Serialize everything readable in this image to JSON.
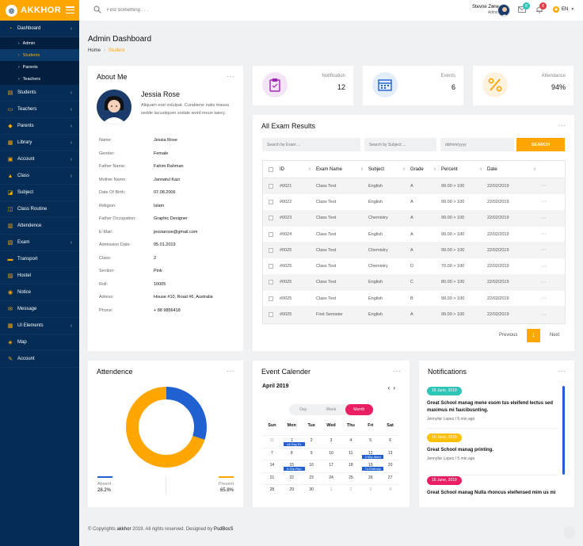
{
  "brand": {
    "name": "AKKHOR"
  },
  "sidebar": {
    "items": [
      {
        "label": "Dashboard",
        "icon": "dashboard-icon",
        "glyph": "◔",
        "chevron": true
      },
      {
        "label": "Students",
        "icon": "students-icon",
        "glyph": "▤",
        "chevron": true
      },
      {
        "label": "Teachers",
        "icon": "teachers-icon",
        "glyph": "▭",
        "chevron": true
      },
      {
        "label": "Parents",
        "icon": "parents-icon",
        "glyph": "◆",
        "chevron": true
      },
      {
        "label": "Library",
        "icon": "library-icon",
        "glyph": "▦",
        "chevron": true
      },
      {
        "label": "Account",
        "icon": "account-icon",
        "glyph": "▣",
        "chevron": true
      },
      {
        "label": "Class",
        "icon": "class-icon",
        "glyph": "▲",
        "chevron": true
      },
      {
        "label": "Subject",
        "icon": "subject-icon",
        "glyph": "◪",
        "chevron": false
      },
      {
        "label": "Class Routine",
        "icon": "routine-icon",
        "glyph": "◫",
        "chevron": false
      },
      {
        "label": "Attendence",
        "icon": "attendence-icon",
        "glyph": "▥",
        "chevron": false
      },
      {
        "label": "Exam",
        "icon": "exam-icon",
        "glyph": "▧",
        "chevron": true
      },
      {
        "label": "Transport",
        "icon": "transport-icon",
        "glyph": "▬",
        "chevron": false
      },
      {
        "label": "Hostel",
        "icon": "hostel-icon",
        "glyph": "▨",
        "chevron": false
      },
      {
        "label": "Notice",
        "icon": "notice-icon",
        "glyph": "◉",
        "chevron": false
      },
      {
        "label": "Message",
        "icon": "message-icon",
        "glyph": "✉",
        "chevron": false
      },
      {
        "label": "UI Elements",
        "icon": "ui-elements-icon",
        "glyph": "▩",
        "chevron": true
      },
      {
        "label": "Map",
        "icon": "map-icon",
        "glyph": "◈",
        "chevron": false
      },
      {
        "label": "Account",
        "icon": "account-settings-icon",
        "glyph": "✎",
        "chevron": false
      }
    ],
    "dashboard_sub": [
      "Admin",
      "Students",
      "Parents",
      "Teachers"
    ]
  },
  "topbar": {
    "search_placeholder": "Find Something . . .",
    "user_name": "Stevne Zone",
    "user_role": "Admin",
    "mail_count": "8",
    "bell_count": "8",
    "language": "EN",
    "colors": {
      "mail_badge": "#2ec4b6",
      "bell_badge": "#e63946"
    }
  },
  "header": {
    "title": "Admin Dashboard",
    "crumb_home": "Home",
    "crumb_current": "Student"
  },
  "about": {
    "title": "About Me",
    "name": "Jessia Rose",
    "bio": "Aliquam erat volutpat. Curabiene natis massa sedde lacustiquen sodale word moun taiery.",
    "fields": [
      {
        "k": "Name:",
        "v": "Jessia Rose"
      },
      {
        "k": "Gender:",
        "v": "Female"
      },
      {
        "k": "Father Name:",
        "v": "Fahim Rahman"
      },
      {
        "k": "Mother Name:",
        "v": "Jannatul Kazi"
      },
      {
        "k": "Date Of Birth:",
        "v": "07.08.2006"
      },
      {
        "k": "Religion:",
        "v": "Islam"
      },
      {
        "k": "Father Occupation:",
        "v": "Graphic Designer"
      },
      {
        "k": "E-Mail:",
        "v": "jessiarose@gmail.com"
      },
      {
        "k": "Admission Date:",
        "v": "05.01.2019"
      },
      {
        "k": "Class:",
        "v": "2"
      },
      {
        "k": "Section:",
        "v": "Pink"
      },
      {
        "k": "Roll:",
        "v": "10005"
      },
      {
        "k": "Adress:",
        "v": "House #10, Road #6, Australia"
      },
      {
        "k": "Phone:",
        "v": "+ 88 9856418"
      }
    ]
  },
  "stats": [
    {
      "label": "Notification",
      "value": "12",
      "icon": "clipboard-icon",
      "color": "#f3e5f5",
      "accent": "#9c27b0"
    },
    {
      "label": "Events",
      "value": "6",
      "icon": "calendar-icon",
      "color": "#e3eefa",
      "accent": "#2060d0"
    },
    {
      "label": "Attendance",
      "value": "94%",
      "icon": "percent-icon",
      "color": "#fff3e0",
      "accent": "#ffa601"
    }
  ],
  "exam": {
    "title": "All Exam Results",
    "filter_exam": "Search by Exam ...",
    "filter_subject": "Search by Subject ...",
    "filter_date": "dd/mm/yyyy",
    "search_btn": "SEARCH",
    "columns": [
      "ID",
      "Exam Name",
      "Subject",
      "Grade",
      "Percent",
      "Date"
    ],
    "rows": [
      [
        "#0021",
        "Class Test",
        "English",
        "A",
        "99.00 > 100",
        "22/02/2019"
      ],
      [
        "#0022",
        "Class Test",
        "English",
        "A",
        "99.00 > 100",
        "22/02/2019"
      ],
      [
        "#0023",
        "Class Test",
        "Chemistry",
        "A",
        "99.00 > 100",
        "22/02/2019"
      ],
      [
        "#0024",
        "Class Test",
        "English",
        "A",
        "99.00 > 100",
        "22/02/2019"
      ],
      [
        "#0025",
        "Class Test",
        "Chemistry",
        "A",
        "99.00 > 100",
        "22/02/2019"
      ],
      [
        "#0025",
        "Class Test",
        "Chemistry",
        "D",
        "70.00 > 100",
        "22/02/2019"
      ],
      [
        "#0025",
        "Class Test",
        "English",
        "C",
        "80.00 > 100",
        "22/02/2019"
      ],
      [
        "#0025",
        "Class Test",
        "English",
        "B",
        "99.00 > 100",
        "22/02/2019"
      ],
      [
        "#0025",
        "First Semister",
        "English",
        "A",
        "99.00 > 100",
        "22/02/2019"
      ]
    ],
    "prev": "Previous",
    "page": "1",
    "next": "Next"
  },
  "attendence": {
    "title": "Attendence",
    "absent_label": "Absent",
    "absent_value": "28.2%",
    "present_label": "Present",
    "present_value": "65.8%",
    "absent_fraction": 0.282,
    "present_fraction": 0.658,
    "colors": {
      "absent": "#2060d0",
      "present": "#ffa601"
    }
  },
  "calendar": {
    "title": "Event Calender",
    "month": "April 2019",
    "views": [
      "Day",
      "Week",
      "Month"
    ],
    "weekdays": [
      "Sun",
      "Mon",
      "Tue",
      "Wed",
      "Thu",
      "Fri",
      "Sat"
    ],
    "weeks": [
      [
        [
          "31",
          true
        ],
        [
          "1",
          false,
          "All Day Ev"
        ],
        [
          "2",
          false
        ],
        [
          "3",
          false
        ],
        [
          "4",
          false
        ],
        [
          "5",
          false
        ],
        [
          "6",
          false
        ]
      ],
      [
        [
          "7",
          false
        ],
        [
          "8",
          false
        ],
        [
          "9",
          false
        ],
        [
          "10",
          false
        ],
        [
          "11",
          false
        ],
        [
          "12",
          false,
          "2:30p Meet"
        ],
        [
          "13",
          false
        ]
      ],
      [
        [
          "14",
          false
        ],
        [
          "15",
          false,
          "5:30p Rep"
        ],
        [
          "16",
          false
        ],
        [
          "17",
          false
        ],
        [
          "18",
          false
        ],
        [
          "19",
          false,
          "7a Birthday"
        ],
        [
          "20",
          false
        ]
      ],
      [
        [
          "21",
          false
        ],
        [
          "22",
          false
        ],
        [
          "23",
          false
        ],
        [
          "24",
          false
        ],
        [
          "25",
          false
        ],
        [
          "26",
          false
        ],
        [
          "27",
          false
        ]
      ],
      [
        [
          "28",
          false
        ],
        [
          "29",
          false
        ],
        [
          "30",
          false
        ],
        [
          "1",
          true
        ],
        [
          "2",
          true
        ],
        [
          "3",
          true
        ],
        [
          "4",
          true
        ]
      ]
    ]
  },
  "notifications": {
    "title": "Notifications",
    "items": [
      {
        "date": "16 June, 2019",
        "color": "#2ec4b6",
        "text": "Great School manag mene esom tus eleifend lectus sed maximus mi faucibusnting.",
        "author": "Jennyfar Lopez",
        "ago": "/ 5 min ago"
      },
      {
        "date": "16 June, 2019",
        "color": "#ffc107",
        "text": "Great School manag printing.",
        "author": "Jennyfar Lopez",
        "ago": "/ 5 min ago"
      },
      {
        "date": "16 June, 2019",
        "color": "#e91e63",
        "text": "Great School manag Nulla rhoncus eleifensed mim us mi",
        "author": "",
        "ago": ""
      }
    ]
  },
  "footer": {
    "pre": "© Copyrights",
    "brand": "akkhor",
    "mid": "2019. All rights reserved. Designed by",
    "designer": "PsdBosS"
  }
}
